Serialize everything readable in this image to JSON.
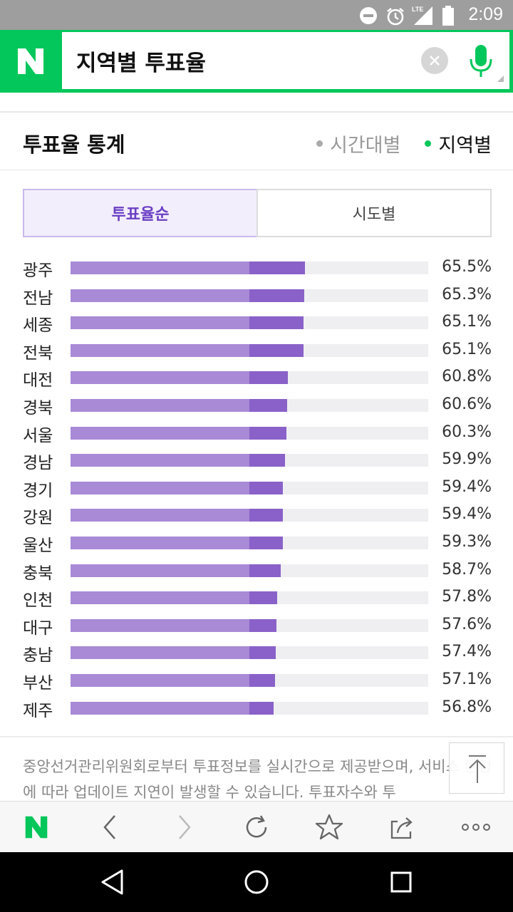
{
  "status_bar": {
    "time": "2:09",
    "network": "LTE",
    "icons": [
      "do-not-disturb-icon",
      "alarm-icon",
      "signal-icon",
      "battery-icon"
    ]
  },
  "search": {
    "logo": "N",
    "query": "지역별 투표율",
    "colors": {
      "brand": "#03c75a"
    }
  },
  "card": {
    "title": "투표율 통계",
    "tabs": [
      {
        "label": "시간대별",
        "active": false
      },
      {
        "label": "지역별",
        "active": true
      }
    ]
  },
  "sort_toggle": {
    "options": [
      {
        "label": "투표율순",
        "selected": true
      },
      {
        "label": "시도별",
        "selected": false
      }
    ]
  },
  "chart_data": {
    "type": "bar",
    "categories": [
      "광주",
      "전남",
      "세종",
      "전북",
      "대전",
      "경북",
      "서울",
      "경남",
      "경기",
      "강원",
      "울산",
      "충북",
      "인천",
      "대구",
      "충남",
      "부산",
      "제주"
    ],
    "values": [
      65.5,
      65.3,
      65.1,
      65.1,
      60.8,
      60.6,
      60.3,
      59.9,
      59.4,
      59.4,
      59.3,
      58.7,
      57.8,
      57.6,
      57.4,
      57.1,
      56.8
    ],
    "labels": [
      "65.5%",
      "65.3%",
      "65.1%",
      "65.1%",
      "60.8%",
      "60.6%",
      "60.3%",
      "59.9%",
      "59.4%",
      "59.4%",
      "59.3%",
      "58.7%",
      "57.8%",
      "57.6%",
      "57.4%",
      "57.1%",
      "56.8%"
    ],
    "ylim": [
      0,
      100
    ],
    "colors": {
      "bar_light": "#a88ad6",
      "bar_dark": "#8a61c8",
      "track": "#efeff2"
    }
  },
  "notice": "중앙선거관리위원회로부터 투표정보를 실시간으로 제공받으며, 서비스 환경에 따라 업데이트 지연이 발생할 수 있습니다. 투표자수와 투",
  "toolbar": {
    "logo": "N",
    "buttons": [
      "back-icon",
      "forward-icon",
      "refresh-icon",
      "bookmark-star-icon",
      "share-icon",
      "more-icon"
    ]
  },
  "navbar": {
    "buttons": [
      "back-triangle-icon",
      "home-circle-icon",
      "recents-square-icon"
    ]
  }
}
